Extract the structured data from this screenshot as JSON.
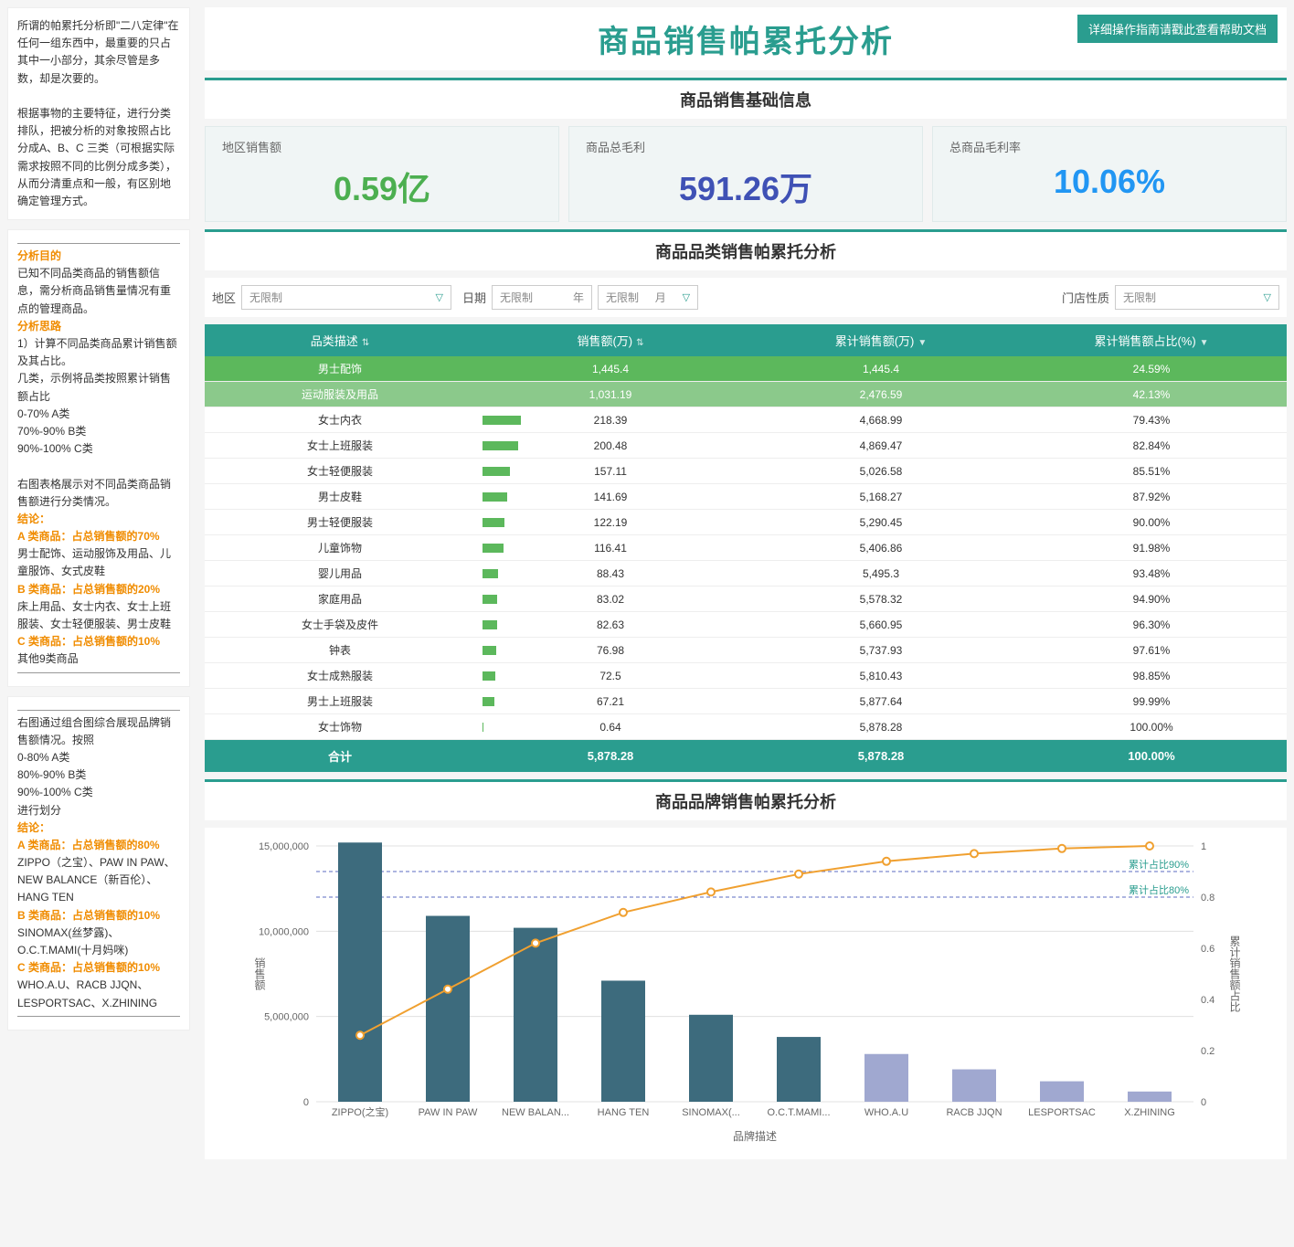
{
  "header": {
    "title": "商品销售帕累托分析",
    "help_button": "详细操作指南请戳此查看帮助文档"
  },
  "sidebar": {
    "panel1": {
      "p1": "所谓的帕累托分析即\"二八定律\"在任何一组东西中，最重要的只占其中一小部分，其余尽管是多数，却是次要的。",
      "p2": "根据事物的主要特征，进行分类排队，把被分析的对象按照占比分成A、B、C 三类（可根据实际需求按照不同的比例分成多类），从而分清重点和一般，有区别地确定管理方式。"
    },
    "panel2": {
      "h1": "分析目的",
      "p1": "已知不同品类商品的销售额信息，需分析商品销售量情况有重点的管理商品。",
      "h2": "分析思路",
      "p2": "1）计算不同品类商品累计销售额及其占比。",
      "p3": "几类，示例将品类按照累计销售额占比",
      "p4": "0-70% A类",
      "p5": "70%-90% B类",
      "p6": "90%-100% C类",
      "p7": "右图表格展示对不同品类商品销售额进行分类情况。",
      "h3": "结论：",
      "h4": "A 类商品：占总销售额的70%",
      "p8": "男士配饰、运动服饰及用品、儿童服饰、女式皮鞋",
      "h5": "B 类商品：占总销售额的20%",
      "p9": "床上用品、女士内衣、女士上班服装、女士轻便服装、男士皮鞋",
      "h6": "C 类商品：占总销售额的10%",
      "p10": "其他9类商品"
    },
    "panel3": {
      "p1": "右图通过组合图综合展现品牌销售额情况。按照",
      "p2": "0-80% A类",
      "p3": "80%-90% B类",
      "p4": "90%-100% C类",
      "p5": "进行划分",
      "h1": "结论：",
      "h2": "A 类商品：占总销售额的80%",
      "p6": "ZIPPO（之宝）、PAW IN PAW、NEW BALANCE（新百伦）、HANG TEN",
      "h3": "B 类商品：占总销售额的10%",
      "p7": "SINOMAX(丝梦露)、O.C.T.MAMI(十月妈咪)",
      "h4": "C 类商品：占总销售额的10%",
      "p8": "WHO.A.U、RACB JJQN、LESPORTSAC、X.ZHINING"
    }
  },
  "sections": {
    "basic_info": "商品销售基础信息",
    "category_pareto": "商品品类销售帕累托分析",
    "brand_pareto": "商品品牌销售帕累托分析"
  },
  "kpis": [
    {
      "label": "地区销售额",
      "value": "0.59亿"
    },
    {
      "label": "商品总毛利",
      "value": "591.26万"
    },
    {
      "label": "总商品毛利率",
      "value": "10.06%"
    }
  ],
  "filters": {
    "region_label": "地区",
    "region_value": "无限制",
    "date_label": "日期",
    "date_year": "无限制",
    "year_suffix": "年",
    "date_month": "无限制",
    "month_suffix": "月",
    "store_label": "门店性质",
    "store_value": "无限制"
  },
  "table": {
    "columns": [
      "品类描述",
      "销售额(万)",
      "累计销售额(万)",
      "累计销售额占比(%)"
    ],
    "max_sales": 1445.4,
    "rows": [
      {
        "cat": "男士配饰",
        "sales": "1,445.4",
        "sales_n": 1445.4,
        "cum": "1,445.4",
        "pct": "24.59%",
        "hl": 0
      },
      {
        "cat": "运动服装及用品",
        "sales": "1,031.19",
        "sales_n": 1031.19,
        "cum": "2,476.59",
        "pct": "42.13%",
        "hl": 1
      },
      {
        "cat": "女士内衣",
        "sales": "218.39",
        "sales_n": 218.39,
        "cum": "4,668.99",
        "pct": "79.43%"
      },
      {
        "cat": "女士上班服装",
        "sales": "200.48",
        "sales_n": 200.48,
        "cum": "4,869.47",
        "pct": "82.84%"
      },
      {
        "cat": "女士轻便服装",
        "sales": "157.11",
        "sales_n": 157.11,
        "cum": "5,026.58",
        "pct": "85.51%"
      },
      {
        "cat": "男士皮鞋",
        "sales": "141.69",
        "sales_n": 141.69,
        "cum": "5,168.27",
        "pct": "87.92%"
      },
      {
        "cat": "男士轻便服装",
        "sales": "122.19",
        "sales_n": 122.19,
        "cum": "5,290.45",
        "pct": "90.00%"
      },
      {
        "cat": "儿童饰物",
        "sales": "116.41",
        "sales_n": 116.41,
        "cum": "5,406.86",
        "pct": "91.98%"
      },
      {
        "cat": "婴儿用品",
        "sales": "88.43",
        "sales_n": 88.43,
        "cum": "5,495.3",
        "pct": "93.48%"
      },
      {
        "cat": "家庭用品",
        "sales": "83.02",
        "sales_n": 83.02,
        "cum": "5,578.32",
        "pct": "94.90%"
      },
      {
        "cat": "女士手袋及皮件",
        "sales": "82.63",
        "sales_n": 82.63,
        "cum": "5,660.95",
        "pct": "96.30%"
      },
      {
        "cat": "钟表",
        "sales": "76.98",
        "sales_n": 76.98,
        "cum": "5,737.93",
        "pct": "97.61%"
      },
      {
        "cat": "女士成熟服装",
        "sales": "72.5",
        "sales_n": 72.5,
        "cum": "5,810.43",
        "pct": "98.85%"
      },
      {
        "cat": "男士上班服装",
        "sales": "67.21",
        "sales_n": 67.21,
        "cum": "5,877.64",
        "pct": "99.99%"
      },
      {
        "cat": "女士饰物",
        "sales": "0.64",
        "sales_n": 0.64,
        "cum": "5,878.28",
        "pct": "100.00%"
      }
    ],
    "footer": {
      "label": "合计",
      "sales": "5,878.28",
      "cum": "5,878.28",
      "pct": "100.00%"
    }
  },
  "chart": {
    "y1_label": "销售额",
    "y2_label": "累计销售额占比",
    "x_label": "品牌描述",
    "y1_max": 15000000,
    "y1_ticks": [
      0,
      5000000,
      10000000,
      15000000
    ],
    "y1_tick_labels": [
      "0",
      "5,000,000",
      "10,000,000",
      "15,000,000"
    ],
    "y2_max": 1,
    "y2_ticks": [
      0,
      0.2,
      0.4,
      0.6,
      0.8,
      1
    ],
    "ref_lines": [
      {
        "value": 0.9,
        "label": "累计占比90%"
      },
      {
        "value": 0.8,
        "label": "累计占比80%"
      }
    ],
    "bars": [
      {
        "label": "ZIPPO(之宝)",
        "value": 15200000,
        "cum": 0.26,
        "cat": "a"
      },
      {
        "label": "PAW IN PAW",
        "value": 10900000,
        "cum": 0.44,
        "cat": "a"
      },
      {
        "label": "NEW BALAN...",
        "value": 10200000,
        "cum": 0.62,
        "cat": "a"
      },
      {
        "label": "HANG TEN",
        "value": 7100000,
        "cum": 0.74,
        "cat": "a"
      },
      {
        "label": "SINOMAX(...",
        "value": 5100000,
        "cum": 0.82,
        "cat": "a"
      },
      {
        "label": "O.C.T.MAMI...",
        "value": 3800000,
        "cum": 0.89,
        "cat": "a"
      },
      {
        "label": "WHO.A.U",
        "value": 2800000,
        "cum": 0.94,
        "cat": "b"
      },
      {
        "label": "RACB JJQN",
        "value": 1900000,
        "cum": 0.97,
        "cat": "b"
      },
      {
        "label": "LESPORTSAC",
        "value": 1200000,
        "cum": 0.99,
        "cat": "b"
      },
      {
        "label": "X.ZHINING",
        "value": 600000,
        "cum": 1.0,
        "cat": "b"
      }
    ],
    "bar_color_a": "#3d6b7d",
    "bar_color_b": "#a0a8d0",
    "line_color": "#f0a030",
    "grid_color": "#e0e0e0",
    "ref_color": "#5b6bc0"
  }
}
